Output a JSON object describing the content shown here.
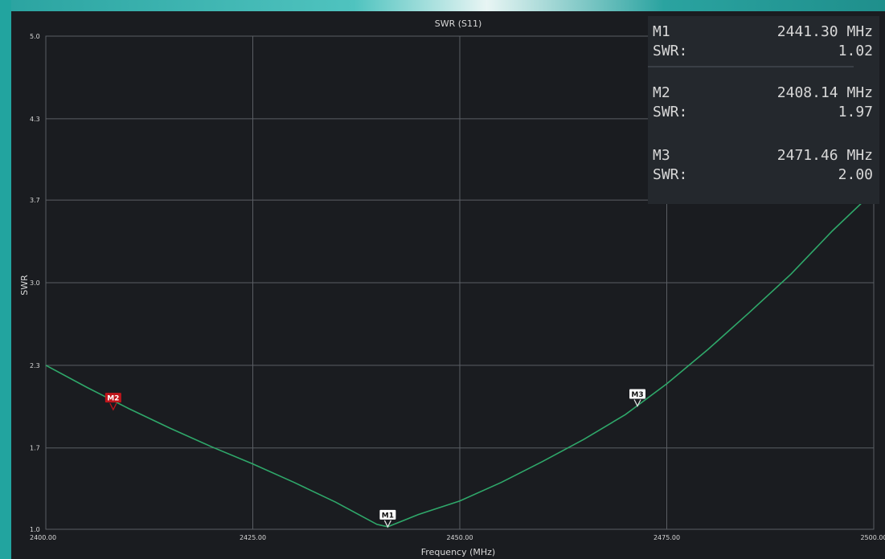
{
  "chart_data": {
    "type": "line",
    "title": "SWR (S11)",
    "xlabel": "Frequency (MHz)",
    "ylabel": "SWR",
    "xlim": [
      2400,
      2500
    ],
    "ylim": [
      1.0,
      5.0
    ],
    "x_ticks": [
      2400,
      2425,
      2450,
      2475,
      2500
    ],
    "x_tick_labels": [
      "2400.00",
      "2425.00",
      "2450.00",
      "2475.00",
      "2500.00"
    ],
    "y_ticks": [
      1.0,
      1.66,
      2.33,
      3.0,
      3.67,
      4.33,
      5.0
    ],
    "y_tick_labels": [
      "1.0",
      "1.7",
      "2.3",
      "3.0",
      "3.7",
      "4.3",
      "5.0"
    ],
    "grid": true,
    "series": [
      {
        "color": "#2fa86a",
        "x": [
          2400,
          2405,
          2410,
          2415,
          2420,
          2425,
          2430,
          2435,
          2440,
          2441.3,
          2445,
          2450,
          2455,
          2460,
          2465,
          2470,
          2475,
          2480,
          2485,
          2490,
          2495,
          2500
        ],
        "y": [
          2.33,
          2.15,
          1.98,
          1.82,
          1.67,
          1.53,
          1.38,
          1.22,
          1.04,
          1.02,
          1.12,
          1.23,
          1.38,
          1.55,
          1.73,
          1.93,
          2.18,
          2.46,
          2.76,
          3.07,
          3.42,
          3.74
        ]
      }
    ],
    "markers": [
      {
        "label": "M1",
        "x": 2441.3,
        "y": 1.02,
        "style": "normal"
      },
      {
        "label": "M2",
        "x": 2408.14,
        "y": 1.97,
        "style": "selected"
      },
      {
        "label": "M3",
        "x": 2471.46,
        "y": 2.0,
        "style": "normal"
      }
    ]
  },
  "marker_panel": [
    {
      "name": "M1",
      "freq": "2441.30 MHz",
      "swr_label": "SWR:",
      "swr": "1.02"
    },
    {
      "name": "M2",
      "freq": "2408.14 MHz",
      "swr_label": "SWR:",
      "swr": "1.97"
    },
    {
      "name": "M3",
      "freq": "2471.46 MHz",
      "swr_label": "SWR:",
      "swr": "2.00"
    }
  ],
  "colors": {
    "background": "#1a1c20",
    "grid": "#5a5e64",
    "trace": "#2fa86a",
    "marker_selected": "#c0151b",
    "text": "#d8d8d8"
  }
}
